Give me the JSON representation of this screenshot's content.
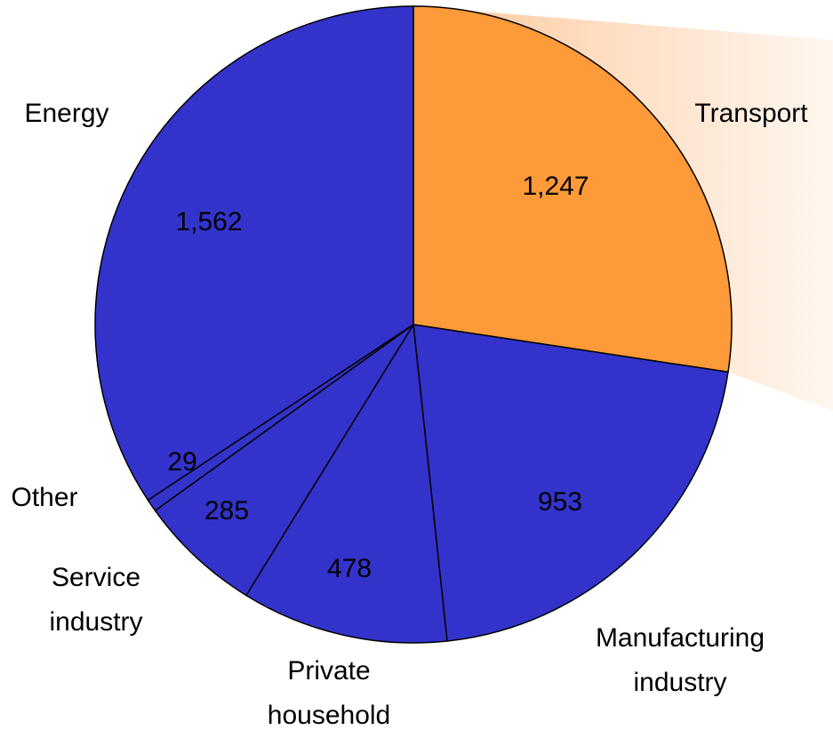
{
  "chart_data": {
    "type": "pie",
    "categories": [
      "Transport",
      "Manufacturing industry",
      "Private household",
      "Service industry",
      "Other",
      "Energy"
    ],
    "values": [
      1247,
      953,
      478,
      285,
      29,
      1562
    ],
    "value_labels": [
      "1,247",
      "953",
      "478",
      "285",
      "29",
      "1,562"
    ],
    "colors": [
      "#fd9a3a",
      "#3333cc",
      "#3333cc",
      "#3333cc",
      "#3333cc",
      "#3333cc"
    ],
    "highlight_color": "#fdc89a"
  }
}
